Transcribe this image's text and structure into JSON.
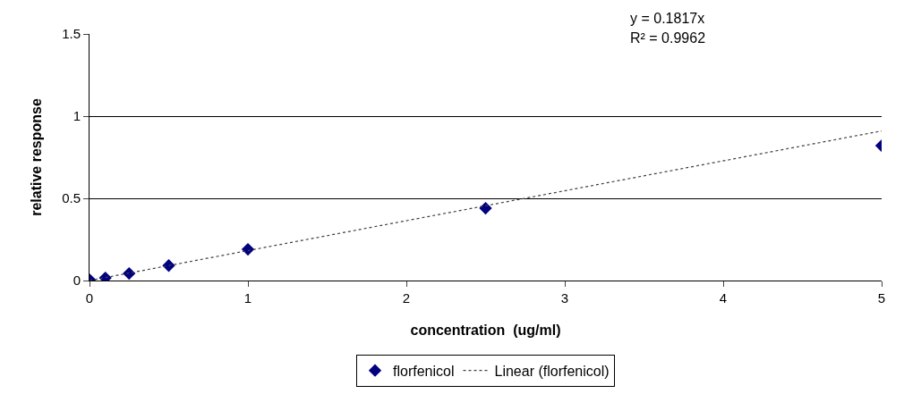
{
  "chart_data": {
    "type": "scatter",
    "xlabel": "concentration  (ug/ml)",
    "ylabel": "relative response",
    "xlim": [
      0,
      5
    ],
    "xticks": [
      0,
      1,
      2,
      3,
      4,
      5
    ],
    "ylim": [
      0,
      1.5
    ],
    "yticks": [
      0,
      0.5,
      1,
      1.5
    ],
    "grid": "y",
    "legend": "bottom",
    "annotations": [
      "y = 0.1817x",
      "R² = 0.9962"
    ],
    "series": [
      {
        "name": "florfenicol",
        "marker": "diamond",
        "color": "#000080",
        "x": [
          0,
          0.1,
          0.25,
          0.5,
          1,
          2.5,
          5
        ],
        "values": [
          0.005,
          0.016,
          0.043,
          0.091,
          0.19,
          0.44,
          0.82
        ]
      },
      {
        "name": "Linear (florfenicol)",
        "type": "line",
        "line_style": "dotted",
        "color": "#404040",
        "x": [
          0,
          5
        ],
        "values": [
          0,
          0.91
        ]
      }
    ]
  }
}
